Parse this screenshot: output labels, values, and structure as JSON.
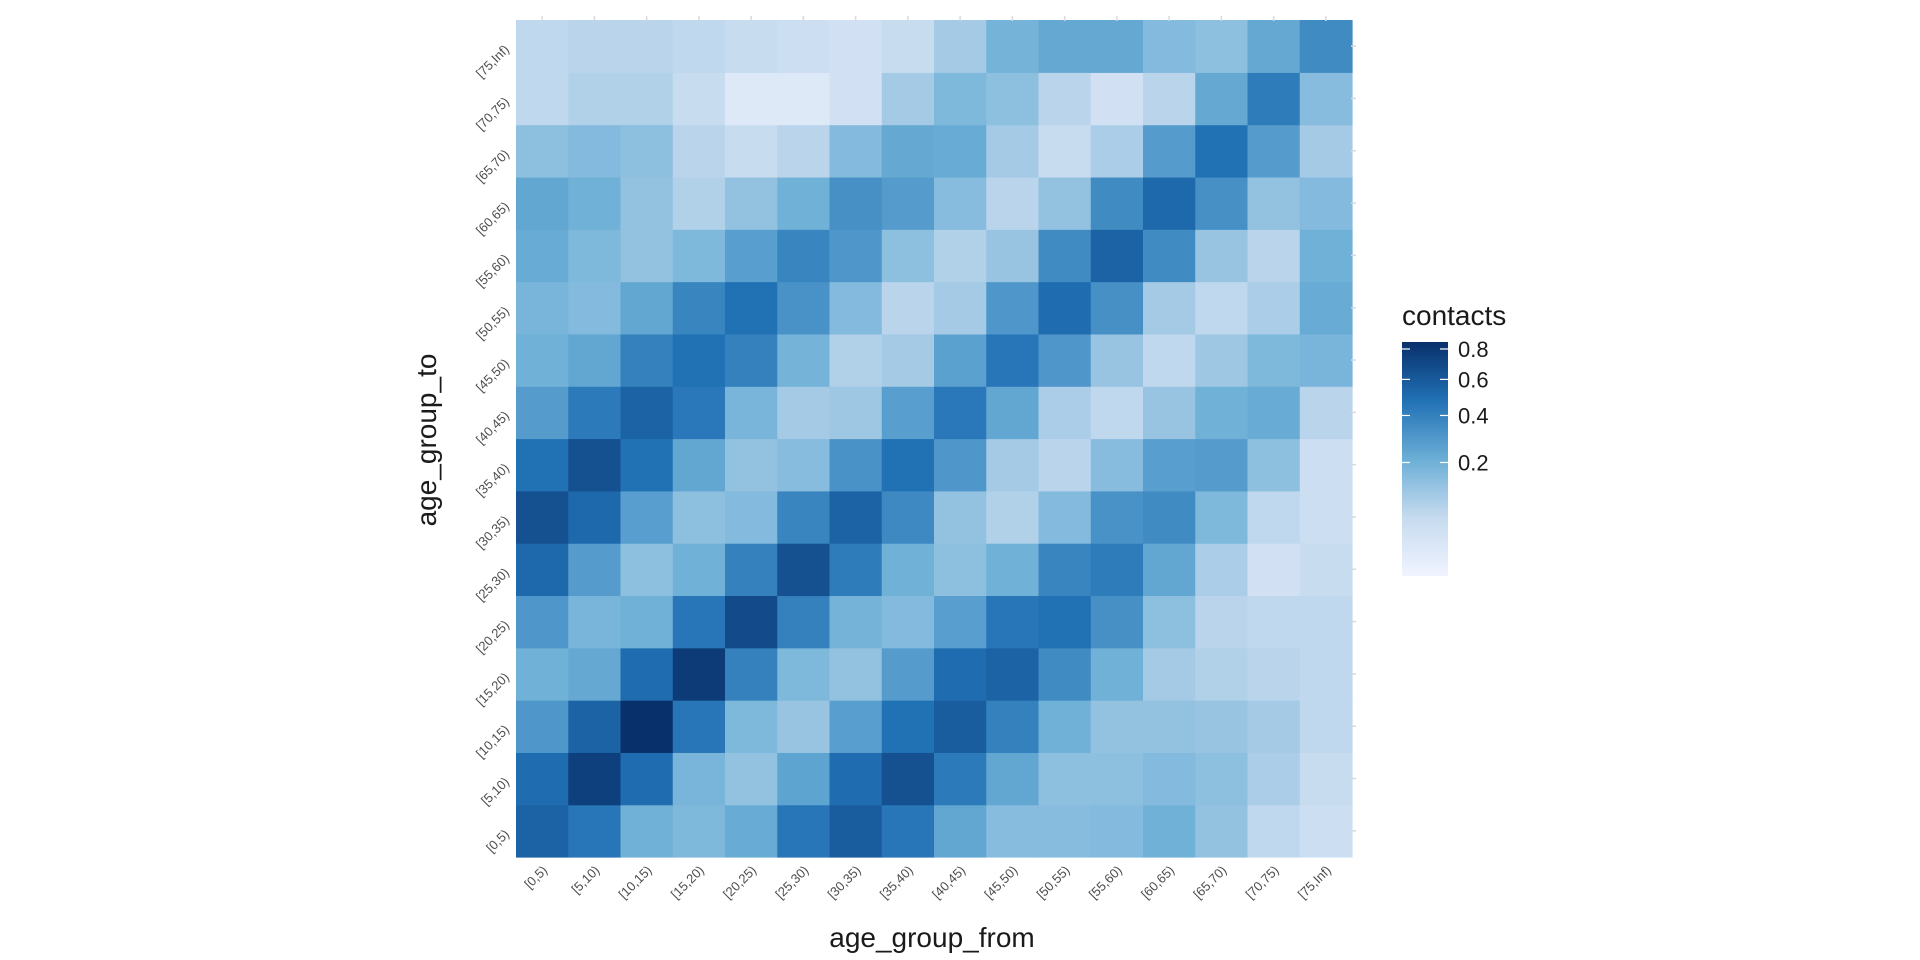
{
  "chart_data": {
    "type": "heatmap",
    "title": "",
    "xlabel": "age_group_from",
    "ylabel": "age_group_to",
    "x_categories": [
      "[0,5)",
      "[5,10)",
      "[10,15)",
      "[15,20)",
      "[20,25)",
      "[25,30)",
      "[30,35)",
      "[35,40)",
      "[40,45)",
      "[45,50)",
      "[50,55)",
      "[55,60)",
      "[60,65)",
      "[65,70)",
      "[70,75)",
      "[75,Inf)"
    ],
    "y_categories": [
      "[0,5)",
      "[5,10)",
      "[10,15)",
      "[15,20)",
      "[20,25)",
      "[25,30)",
      "[30,35)",
      "[35,40)",
      "[40,45)",
      "[45,50)",
      "[50,55)",
      "[55,60)",
      "[60,65)",
      "[65,70)",
      "[70,75)",
      "[75,Inf)"
    ],
    "values": [
      [
        0.55,
        0.45,
        0.2,
        0.17,
        0.22,
        0.45,
        0.58,
        0.45,
        0.24,
        0.15,
        0.15,
        0.16,
        0.2,
        0.13,
        0.06,
        0.04
      ],
      [
        0.5,
        0.75,
        0.5,
        0.18,
        0.13,
        0.25,
        0.5,
        0.65,
        0.43,
        0.24,
        0.14,
        0.14,
        0.16,
        0.14,
        0.09,
        0.05
      ],
      [
        0.3,
        0.55,
        0.85,
        0.45,
        0.17,
        0.12,
        0.27,
        0.48,
        0.58,
        0.4,
        0.2,
        0.13,
        0.13,
        0.12,
        0.1,
        0.06
      ],
      [
        0.2,
        0.23,
        0.5,
        0.78,
        0.4,
        0.17,
        0.13,
        0.28,
        0.5,
        0.55,
        0.35,
        0.2,
        0.1,
        0.08,
        0.07,
        0.06
      ],
      [
        0.3,
        0.18,
        0.2,
        0.45,
        0.68,
        0.4,
        0.19,
        0.16,
        0.27,
        0.45,
        0.48,
        0.33,
        0.14,
        0.07,
        0.06,
        0.06
      ],
      [
        0.52,
        0.28,
        0.14,
        0.2,
        0.4,
        0.65,
        0.42,
        0.2,
        0.14,
        0.2,
        0.38,
        0.42,
        0.24,
        0.09,
        0.03,
        0.05
      ],
      [
        0.65,
        0.52,
        0.27,
        0.14,
        0.16,
        0.38,
        0.55,
        0.36,
        0.13,
        0.08,
        0.16,
        0.32,
        0.35,
        0.17,
        0.06,
        0.04
      ],
      [
        0.48,
        0.65,
        0.48,
        0.24,
        0.13,
        0.15,
        0.32,
        0.48,
        0.3,
        0.1,
        0.07,
        0.15,
        0.27,
        0.28,
        0.14,
        0.04
      ],
      [
        0.28,
        0.43,
        0.55,
        0.44,
        0.18,
        0.1,
        0.11,
        0.27,
        0.44,
        0.24,
        0.09,
        0.06,
        0.12,
        0.2,
        0.22,
        0.07
      ],
      [
        0.2,
        0.24,
        0.4,
        0.48,
        0.4,
        0.19,
        0.08,
        0.1,
        0.26,
        0.45,
        0.3,
        0.12,
        0.06,
        0.11,
        0.17,
        0.18
      ],
      [
        0.18,
        0.16,
        0.24,
        0.38,
        0.48,
        0.32,
        0.16,
        0.07,
        0.1,
        0.3,
        0.5,
        0.33,
        0.1,
        0.06,
        0.09,
        0.22
      ],
      [
        0.22,
        0.17,
        0.13,
        0.17,
        0.27,
        0.38,
        0.3,
        0.14,
        0.08,
        0.12,
        0.35,
        0.55,
        0.35,
        0.12,
        0.07,
        0.2
      ],
      [
        0.24,
        0.2,
        0.13,
        0.08,
        0.13,
        0.2,
        0.33,
        0.28,
        0.15,
        0.07,
        0.13,
        0.35,
        0.52,
        0.33,
        0.13,
        0.16
      ],
      [
        0.14,
        0.16,
        0.14,
        0.07,
        0.05,
        0.07,
        0.16,
        0.23,
        0.22,
        0.1,
        0.05,
        0.09,
        0.28,
        0.48,
        0.28,
        0.1
      ],
      [
        0.06,
        0.08,
        0.08,
        0.05,
        0.01,
        0.01,
        0.03,
        0.1,
        0.17,
        0.14,
        0.07,
        0.03,
        0.07,
        0.23,
        0.42,
        0.15
      ],
      [
        0.06,
        0.07,
        0.07,
        0.06,
        0.05,
        0.04,
        0.03,
        0.05,
        0.1,
        0.19,
        0.23,
        0.23,
        0.16,
        0.14,
        0.23,
        0.35
      ]
    ],
    "legend": {
      "title": "contacts",
      "ticks": [
        0.2,
        0.4,
        0.6,
        0.8
      ],
      "tick_labels": [
        "0.2",
        "0.4",
        "0.6",
        "0.8"
      ],
      "min": 0.0,
      "max": 0.85,
      "scale": "sqrt",
      "placement": "right"
    },
    "color_low": "#f1f4ff",
    "color_high": "#08306b",
    "grid": false
  }
}
